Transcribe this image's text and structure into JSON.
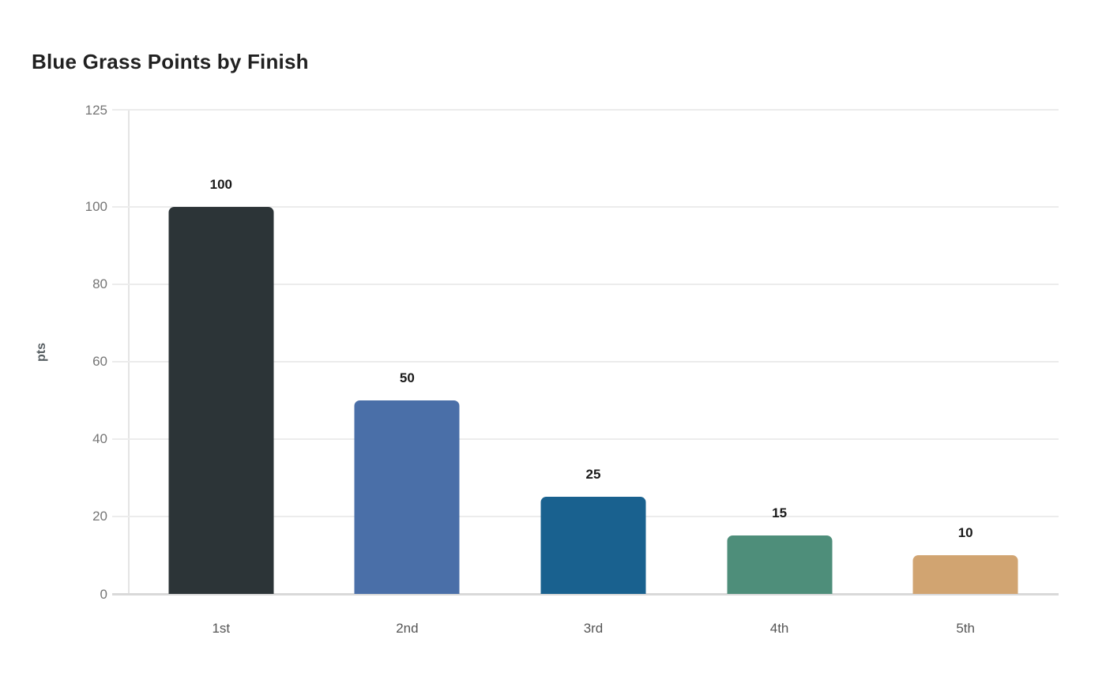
{
  "chart_data": {
    "type": "bar",
    "title": "Blue Grass Points by Finish",
    "xlabel": "",
    "ylabel": "pts",
    "categories": [
      "1st",
      "2nd",
      "3rd",
      "4th",
      "5th"
    ],
    "values": [
      100,
      50,
      25,
      15,
      10
    ],
    "value_labels": [
      "100",
      "50",
      "25",
      "15",
      "10"
    ],
    "bar_colors": [
      "#2c3437",
      "#4a6fa8",
      "#19618f",
      "#4e8e7a",
      "#d1a471"
    ],
    "ylim": [
      0,
      125
    ],
    "yticks": [
      0,
      20,
      40,
      60,
      80,
      100,
      125
    ],
    "grid": "horizontal-only",
    "legend": "none",
    "style": {
      "background": "#ffffff",
      "title_color": "#212121",
      "grid_color": "#ececec",
      "baseline_color": "#d9d9d9",
      "axis_spine_color": "#e4e4e4",
      "y_tick_label_color": "#757575",
      "x_tick_label_color": "#555555",
      "value_label_color": "#1a1a1a",
      "y_axis_title_color": "#555c60"
    }
  }
}
